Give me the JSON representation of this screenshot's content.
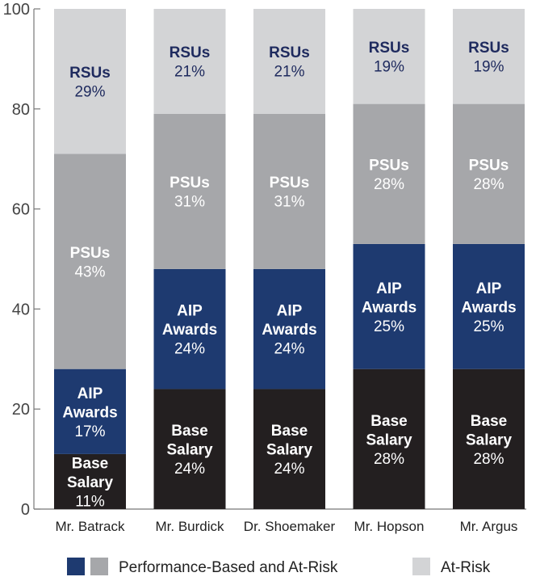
{
  "chart_data": {
    "type": "bar",
    "stacked": true,
    "title": "",
    "xlabel": "",
    "ylabel": "",
    "ylim": [
      0,
      100
    ],
    "yticks": [
      0,
      20,
      40,
      60,
      80,
      100
    ],
    "grid": false,
    "categories": [
      "Mr. Batrack",
      "Mr. Burdick",
      "Dr. Shoemaker",
      "Mr. Hopson",
      "Mr. Argus"
    ],
    "series": [
      {
        "name": "Base Salary",
        "label_lines": [
          "Base",
          "Salary"
        ],
        "color": "#231f20",
        "text_color": "#ffffff",
        "values": [
          11,
          24,
          24,
          28,
          28
        ]
      },
      {
        "name": "AIP Awards",
        "label_lines": [
          "AIP",
          "Awards"
        ],
        "color": "#1e3a70",
        "text_color": "#ffffff",
        "values": [
          17,
          24,
          24,
          25,
          25
        ]
      },
      {
        "name": "PSUs",
        "label_lines": [
          "PSUs"
        ],
        "color": "#a6a7aa",
        "text_color": "#ffffff",
        "values": [
          43,
          31,
          31,
          28,
          28
        ]
      },
      {
        "name": "RSUs",
        "label_lines": [
          "RSUs"
        ],
        "color": "#d3d4d6",
        "text_color": "#1e2a5e",
        "values": [
          29,
          21,
          21,
          19,
          19
        ]
      }
    ],
    "legend": {
      "position": "bottom",
      "entries": [
        {
          "label": "Performance-Based and At-Risk",
          "colors": [
            "#1e3a70",
            "#a6a7aa"
          ]
        },
        {
          "label": "At-Risk",
          "colors": [
            "#d3d4d6"
          ]
        }
      ]
    }
  }
}
